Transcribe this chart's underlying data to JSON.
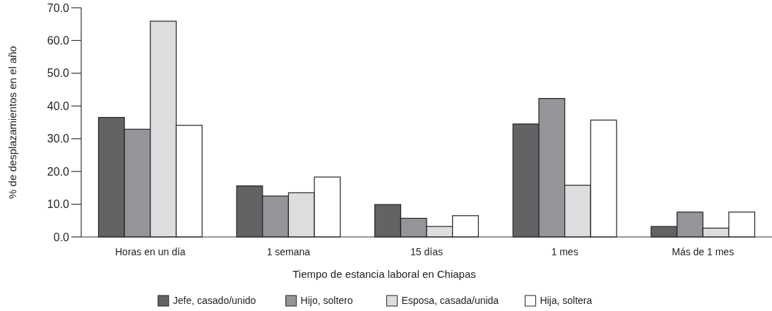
{
  "chart_data": {
    "type": "bar",
    "xlabel": "Tiempo de estancia laboral en Chiapas",
    "ylabel": "% de desplazamientos en el año",
    "categories": [
      "Horas en un día",
      "1 semana",
      "15 días",
      "1 mes",
      "Más de 1 mes"
    ],
    "series": [
      {
        "name": "Jefe, casado/unido",
        "color": "#636365",
        "values": [
          36.5,
          15.6,
          9.9,
          34.5,
          3.2
        ]
      },
      {
        "name": "Hijo, soltero",
        "color": "#949598",
        "values": [
          32.9,
          12.5,
          5.7,
          42.3,
          7.6
        ]
      },
      {
        "name": "Esposa, casada/unida",
        "color": "#dcdddf",
        "values": [
          65.9,
          13.5,
          3.2,
          15.8,
          2.7
        ]
      },
      {
        "name": "Hija, soltera",
        "color": "#ffffff",
        "values": [
          34.1,
          18.3,
          6.5,
          35.7,
          7.6
        ]
      }
    ],
    "ylim": [
      0,
      70
    ],
    "yticks": [
      {
        "value": 0,
        "label": "0.0"
      },
      {
        "value": 10,
        "label": "10.0"
      },
      {
        "value": 20,
        "label": "20.0"
      },
      {
        "value": 30,
        "label": "30.0"
      },
      {
        "value": 40,
        "label": "40.0"
      },
      {
        "value": 50,
        "label": "50.0"
      },
      {
        "value": 60,
        "label": "60.0"
      },
      {
        "value": 70,
        "label": "70.0"
      }
    ],
    "grid": false,
    "legend": "bottom"
  }
}
